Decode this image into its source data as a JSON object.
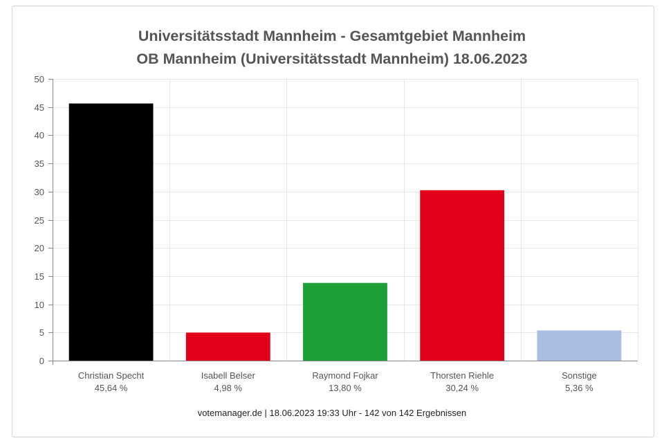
{
  "chart_data": {
    "type": "bar",
    "title": "Universitätsstadt Mannheim - Gesamtgebiet Mannheim",
    "subtitle": "OB Mannheim (Universitätsstadt Mannheim) 18.06.2023",
    "categories": [
      "Christian Specht",
      "Isabell Belser",
      "Raymond Fojkar",
      "Thorsten Riehle",
      "Sonstige"
    ],
    "percent_labels": [
      "45,64 %",
      "4,98 %",
      "13,80 %",
      "30,24 %",
      "5,36 %"
    ],
    "values": [
      45.64,
      4.98,
      13.8,
      30.24,
      5.36
    ],
    "colors": [
      "#000000",
      "#e2001a",
      "#1ca037",
      "#e2001a",
      "#a9bde3"
    ],
    "ylim": [
      0,
      50
    ],
    "yticks": [
      0,
      5,
      10,
      15,
      20,
      25,
      30,
      35,
      40,
      45,
      50
    ],
    "grid": true,
    "footer": "votemanager.de | 18.06.2023 19:33 Uhr - 142 von 142 Ergebnissen"
  }
}
